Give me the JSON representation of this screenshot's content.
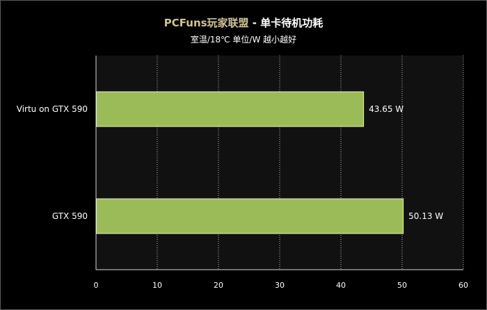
{
  "title_brand": "PCFuns玩家联盟",
  "title_rest": " - 单卡待机功耗",
  "subtitle": "室温/18℃  单位/W  越小越好",
  "colors": {
    "background": "#000000",
    "plot_background": "#111111",
    "bar_fill": "#9bbb59",
    "bar_stroke": "#e6f0c8",
    "grid": "#bfbfbf",
    "brand": "#cfc397"
  },
  "chart_data": {
    "type": "bar",
    "orientation": "horizontal",
    "categories": [
      "Virtu on GTX 590",
      "GTX 590"
    ],
    "values": [
      43.65,
      50.13
    ],
    "value_labels": [
      "43.65 W",
      "50.13 W"
    ],
    "xlim": [
      0,
      60
    ],
    "xticks": [
      0,
      10,
      20,
      30,
      40,
      50,
      60
    ],
    "grid": true,
    "legend": "none"
  }
}
